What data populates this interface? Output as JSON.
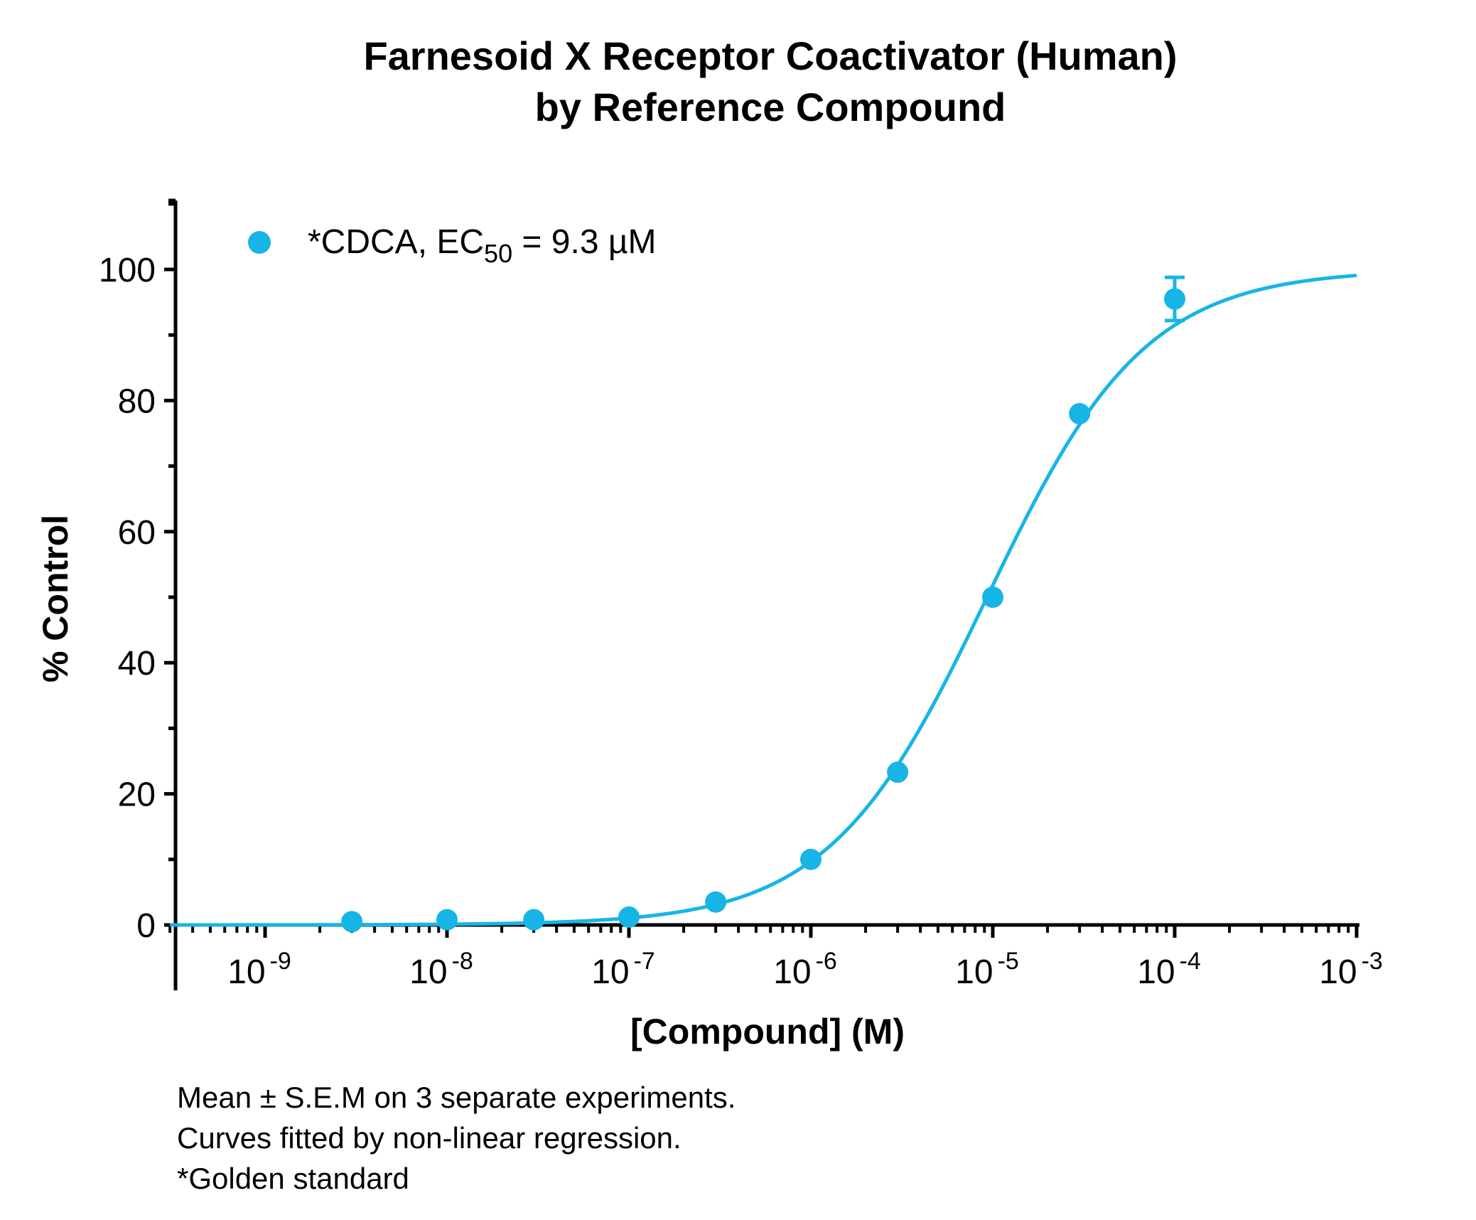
{
  "chart_data": {
    "type": "scatter",
    "title_lines": [
      "Farnesoid X Receptor Coactivator (Human)",
      "by Reference Compound"
    ],
    "xlabel": "[Compound] (M)",
    "ylabel": "% Control",
    "x_scale": "log",
    "xlim": [
      3e-10,
      0.001
    ],
    "ylim": [
      0,
      110
    ],
    "x_ticks": [
      {
        "value": 1e-09,
        "base": "10",
        "exp": "-9"
      },
      {
        "value": 1e-08,
        "base": "10",
        "exp": "-8"
      },
      {
        "value": 1e-07,
        "base": "10",
        "exp": "-7"
      },
      {
        "value": 1e-06,
        "base": "10",
        "exp": "-6"
      },
      {
        "value": 1e-05,
        "base": "10",
        "exp": "-5"
      },
      {
        "value": 0.0001,
        "base": "10",
        "exp": "-4"
      },
      {
        "value": 0.001,
        "base": "10",
        "exp": "-3"
      }
    ],
    "y_ticks": [
      0,
      20,
      40,
      60,
      80,
      100
    ],
    "y_ticks_labels": [
      "0",
      "20",
      "40",
      "60",
      "80",
      "100"
    ],
    "grid": false,
    "legend_position": "top-left",
    "series": [
      {
        "name": "*CDCA",
        "legend": {
          "prefix": "*CDCA, EC",
          "subscript": "50",
          "suffix": " = 9.3 µM"
        },
        "color": "#17b5e6",
        "x": [
          3e-09,
          1e-08,
          3e-08,
          1e-07,
          3e-07,
          1e-06,
          3e-06,
          1e-05,
          3e-05,
          0.0001
        ],
        "y": [
          0.5,
          0.8,
          0.8,
          1.2,
          3.5,
          10,
          23.3,
          50,
          78,
          95.5
        ],
        "error": [
          0,
          0,
          0,
          0,
          0,
          0,
          0,
          0,
          0,
          3.3
        ],
        "fit": {
          "model": "Hill",
          "bottom": 0,
          "top": 100,
          "ec50": 9.3e-06,
          "hill": 1.0
        }
      }
    ]
  },
  "notes": [
    "Mean ± S.E.M on 3 separate experiments.",
    "Curves fitted by non-linear regression.",
    "*Golden standard"
  ]
}
